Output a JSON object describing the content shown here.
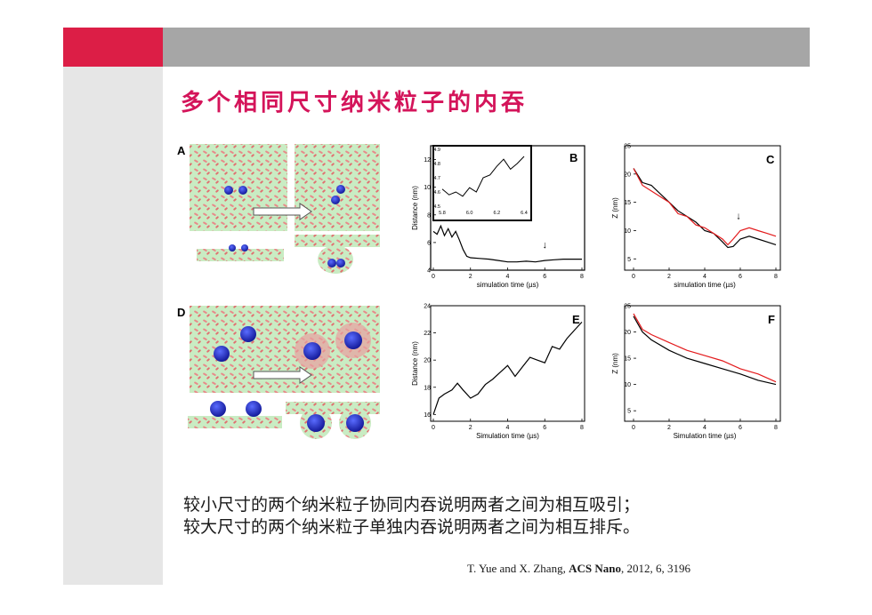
{
  "slide": {
    "title": "多个相同尺寸纳米粒子的内吞",
    "colors": {
      "red": "#dc1e46",
      "grey": "#a6a6a6",
      "title": "#d4145a",
      "sidebar": "#e6e6e6"
    }
  },
  "figure": {
    "panel_labels": [
      "A",
      "B",
      "C",
      "D",
      "E",
      "F"
    ]
  },
  "chart_data": [
    {
      "type": "line",
      "panel": "B",
      "xlabel": "simulation time (µs)",
      "ylabel": "Distance (nm)",
      "xticks": [
        "0",
        "2",
        "4",
        "6",
        "8"
      ],
      "yticks": [
        "4",
        "6",
        "8",
        "10",
        "12"
      ],
      "xlim": [
        0,
        8
      ],
      "ylim": [
        4,
        13
      ],
      "series": [
        {
          "color": "#000000",
          "x": [
            0,
            0.2,
            0.4,
            0.6,
            0.8,
            1.0,
            1.2,
            1.4,
            1.6,
            1.8,
            2.0,
            2.5,
            3.0,
            3.5,
            4.0,
            4.5,
            5.0,
            5.5,
            6.0,
            6.5,
            7.0,
            7.5,
            8.0
          ],
          "y": [
            6.8,
            6.6,
            7.2,
            6.5,
            7.0,
            6.4,
            6.8,
            6.2,
            5.5,
            5.0,
            4.9,
            4.85,
            4.8,
            4.7,
            4.6,
            4.6,
            4.65,
            4.6,
            4.7,
            4.75,
            4.8,
            4.8,
            4.8
          ]
        }
      ],
      "annotations": [
        "↓"
      ],
      "inset": {
        "xticks": [
          "5.8",
          "6.0",
          "6.2",
          "6.4"
        ],
        "yticks": [
          "4.5",
          "4.6",
          "4.7",
          "4.8",
          "4.9"
        ],
        "xlim": [
          5.8,
          6.4
        ],
        "ylim": [
          4.5,
          4.9
        ],
        "x": [
          5.8,
          5.85,
          5.9,
          5.95,
          6.0,
          6.05,
          6.1,
          6.15,
          6.2,
          6.25,
          6.3,
          6.35,
          6.4
        ],
        "y": [
          4.62,
          4.58,
          4.6,
          4.57,
          4.63,
          4.6,
          4.7,
          4.72,
          4.78,
          4.83,
          4.76,
          4.8,
          4.85
        ]
      }
    },
    {
      "type": "line",
      "panel": "C",
      "xlabel": "simulation time (µs)",
      "ylabel": "Z (nm)",
      "xticks": [
        "0",
        "2",
        "4",
        "6",
        "8"
      ],
      "yticks": [
        "5",
        "10",
        "15",
        "20",
        "25"
      ],
      "xlim": [
        0,
        8
      ],
      "ylim": [
        3,
        25
      ],
      "series": [
        {
          "color": "#000000",
          "x": [
            0,
            0.5,
            1,
            1.5,
            2,
            2.5,
            3,
            3.5,
            4,
            4.5,
            5,
            5.3,
            5.6,
            6,
            6.5,
            7,
            7.5,
            8
          ],
          "y": [
            21,
            18.5,
            18,
            16.5,
            15,
            13.5,
            12.5,
            11.5,
            10,
            9.5,
            8,
            7,
            7.2,
            8.5,
            9,
            8.5,
            8,
            7.5
          ]
        },
        {
          "color": "#e31a1c",
          "x": [
            0,
            0.5,
            1,
            1.5,
            2,
            2.5,
            3,
            3.5,
            4,
            4.5,
            5,
            5.3,
            5.6,
            6,
            6.5,
            7,
            7.5,
            8
          ],
          "y": [
            21,
            18,
            17,
            16,
            15,
            13,
            12.5,
            11,
            10.5,
            9.5,
            8.5,
            7.5,
            8.5,
            10,
            10.5,
            10,
            9.5,
            9
          ]
        }
      ],
      "annotations": [
        "↓"
      ]
    },
    {
      "type": "line",
      "panel": "E",
      "xlabel": "Simulation time (µs)",
      "ylabel": "Distance (nm)",
      "xticks": [
        "0",
        "2",
        "4",
        "6",
        "8"
      ],
      "yticks": [
        "16",
        "18",
        "20",
        "22",
        "24"
      ],
      "xlim": [
        0,
        8
      ],
      "ylim": [
        15.5,
        24
      ],
      "series": [
        {
          "color": "#000000",
          "x": [
            0,
            0.3,
            0.6,
            1.0,
            1.3,
            1.6,
            2.0,
            2.4,
            2.8,
            3.2,
            3.6,
            4.0,
            4.4,
            4.8,
            5.2,
            5.6,
            6.0,
            6.4,
            6.8,
            7.2,
            7.6,
            8.0
          ],
          "y": [
            16.0,
            17.2,
            17.5,
            17.8,
            18.3,
            17.8,
            17.2,
            17.5,
            18.2,
            18.6,
            19.1,
            19.6,
            18.8,
            19.5,
            20.2,
            20.0,
            19.8,
            21.0,
            20.8,
            21.6,
            22.2,
            22.8
          ]
        }
      ]
    },
    {
      "type": "line",
      "panel": "F",
      "xlabel": "Simulation time (µs)",
      "ylabel": "Z (nm)",
      "xticks": [
        "0",
        "2",
        "4",
        "6",
        "8"
      ],
      "yticks": [
        "5",
        "10",
        "15",
        "20",
        "25"
      ],
      "xlim": [
        0,
        8
      ],
      "ylim": [
        3,
        25
      ],
      "series": [
        {
          "color": "#000000",
          "x": [
            0,
            0.5,
            1,
            2,
            3,
            4,
            5,
            6,
            7,
            8
          ],
          "y": [
            23,
            20,
            18.5,
            16.5,
            15,
            14,
            13,
            12,
            10.8,
            10
          ]
        },
        {
          "color": "#e31a1c",
          "x": [
            0,
            0.5,
            1,
            2,
            3,
            4,
            5,
            6,
            7,
            8
          ],
          "y": [
            23.5,
            20.5,
            19.5,
            18,
            16.5,
            15.5,
            14.5,
            13,
            12,
            10.5
          ]
        }
      ]
    }
  ],
  "caption": {
    "line1": "较小尺寸的两个纳米粒子协同内吞说明两者之间为相互吸引；",
    "line2": "较大尺寸的两个纳米粒子单独内吞说明两者之间为相互排斥。"
  },
  "reference": {
    "authors": "T. Yue and X. Zhang, ",
    "journal": "ACS Nano",
    "rest": ", 2012, 6, 3196"
  }
}
